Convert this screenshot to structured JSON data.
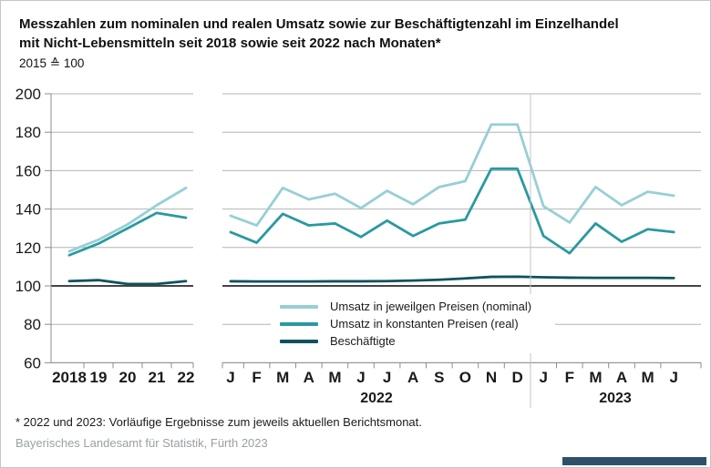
{
  "header": {
    "title_line1": "Messzahlen zum nominalen und realen Umsatz sowie zur Beschäftigtenzahl im Einzelhandel",
    "title_line2": "mit Nicht-Lebensmitteln seit 2018 sowie seit 2022 nach Monaten*",
    "subtitle": "2015 ≙ 100"
  },
  "chart_data": {
    "type": "line",
    "unit_note": "2015 ≙ 100",
    "y_axis": {
      "min": 60,
      "max": 200,
      "tick_step": 20,
      "ticks": [
        200,
        180,
        160,
        140,
        120,
        100,
        80,
        60
      ]
    },
    "baseline_value": 100,
    "grid": true,
    "legend_position": "inside-bottom-center",
    "legend": [
      {
        "label": "Umsatz in jeweilgen Preisen (nominal)",
        "series": "nominal",
        "color": "#97cfd5"
      },
      {
        "label": "Umsatz in konstanten Preisen (real)",
        "series": "real",
        "color": "#2a99a0"
      },
      {
        "label": "Beschäftigte",
        "series": "employment",
        "color": "#0d535e"
      }
    ],
    "panels": [
      {
        "name": "annual",
        "categories": [
          "2018",
          "19",
          "20",
          "21",
          "22"
        ],
        "series": [
          {
            "name": "nominal",
            "values": [
              118,
              124,
              132,
              142,
              151
            ]
          },
          {
            "name": "real",
            "values": [
              116,
              122,
              130,
              138,
              135.5
            ]
          },
          {
            "name": "employment",
            "values": [
              102.5,
              103,
              101,
              101,
              102.5
            ]
          }
        ]
      },
      {
        "name": "monthly",
        "categories": [
          "J",
          "F",
          "M",
          "A",
          "M",
          "J",
          "J",
          "A",
          "S",
          "O",
          "N",
          "D",
          "J",
          "F",
          "M",
          "A",
          "M",
          "J"
        ],
        "year_labels": [
          "2022",
          "2023"
        ],
        "series": [
          {
            "name": "nominal",
            "values": [
              136.5,
              131.5,
              151,
              145,
              148,
              140.5,
              149.5,
              142.5,
              151.5,
              154.5,
              184,
              184,
              141.5,
              133,
              151.5,
              142,
              149,
              147
            ]
          },
          {
            "name": "real",
            "values": [
              128,
              122.5,
              137.5,
              131.5,
              132.5,
              125.5,
              134,
              126,
              132.5,
              134.5,
              161,
              161,
              126,
              117,
              132.5,
              123,
              129.5,
              128
            ]
          },
          {
            "name": "employment",
            "values": [
              102.4,
              102.3,
              102.3,
              102.3,
              102.4,
              102.4,
              102.5,
              102.8,
              103.2,
              103.9,
              104.7,
              104.8,
              104.5,
              104.3,
              104.2,
              104.2,
              104.2,
              104.1
            ]
          }
        ]
      }
    ]
  },
  "footnote": "* 2022 und 2023: Vorläufige Ergebnisse zum jeweils aktuellen Berichtsmonat.",
  "source": "Bayerisches Landesamt für Statistik, Fürth 2023",
  "colors": {
    "gridline": "#b4b4b4",
    "axis": "#8c8c8c",
    "baseline": "#454545",
    "divider": "#c4c4c4",
    "brand_bar": "#30506a",
    "source_text": "#9aa0a4"
  }
}
